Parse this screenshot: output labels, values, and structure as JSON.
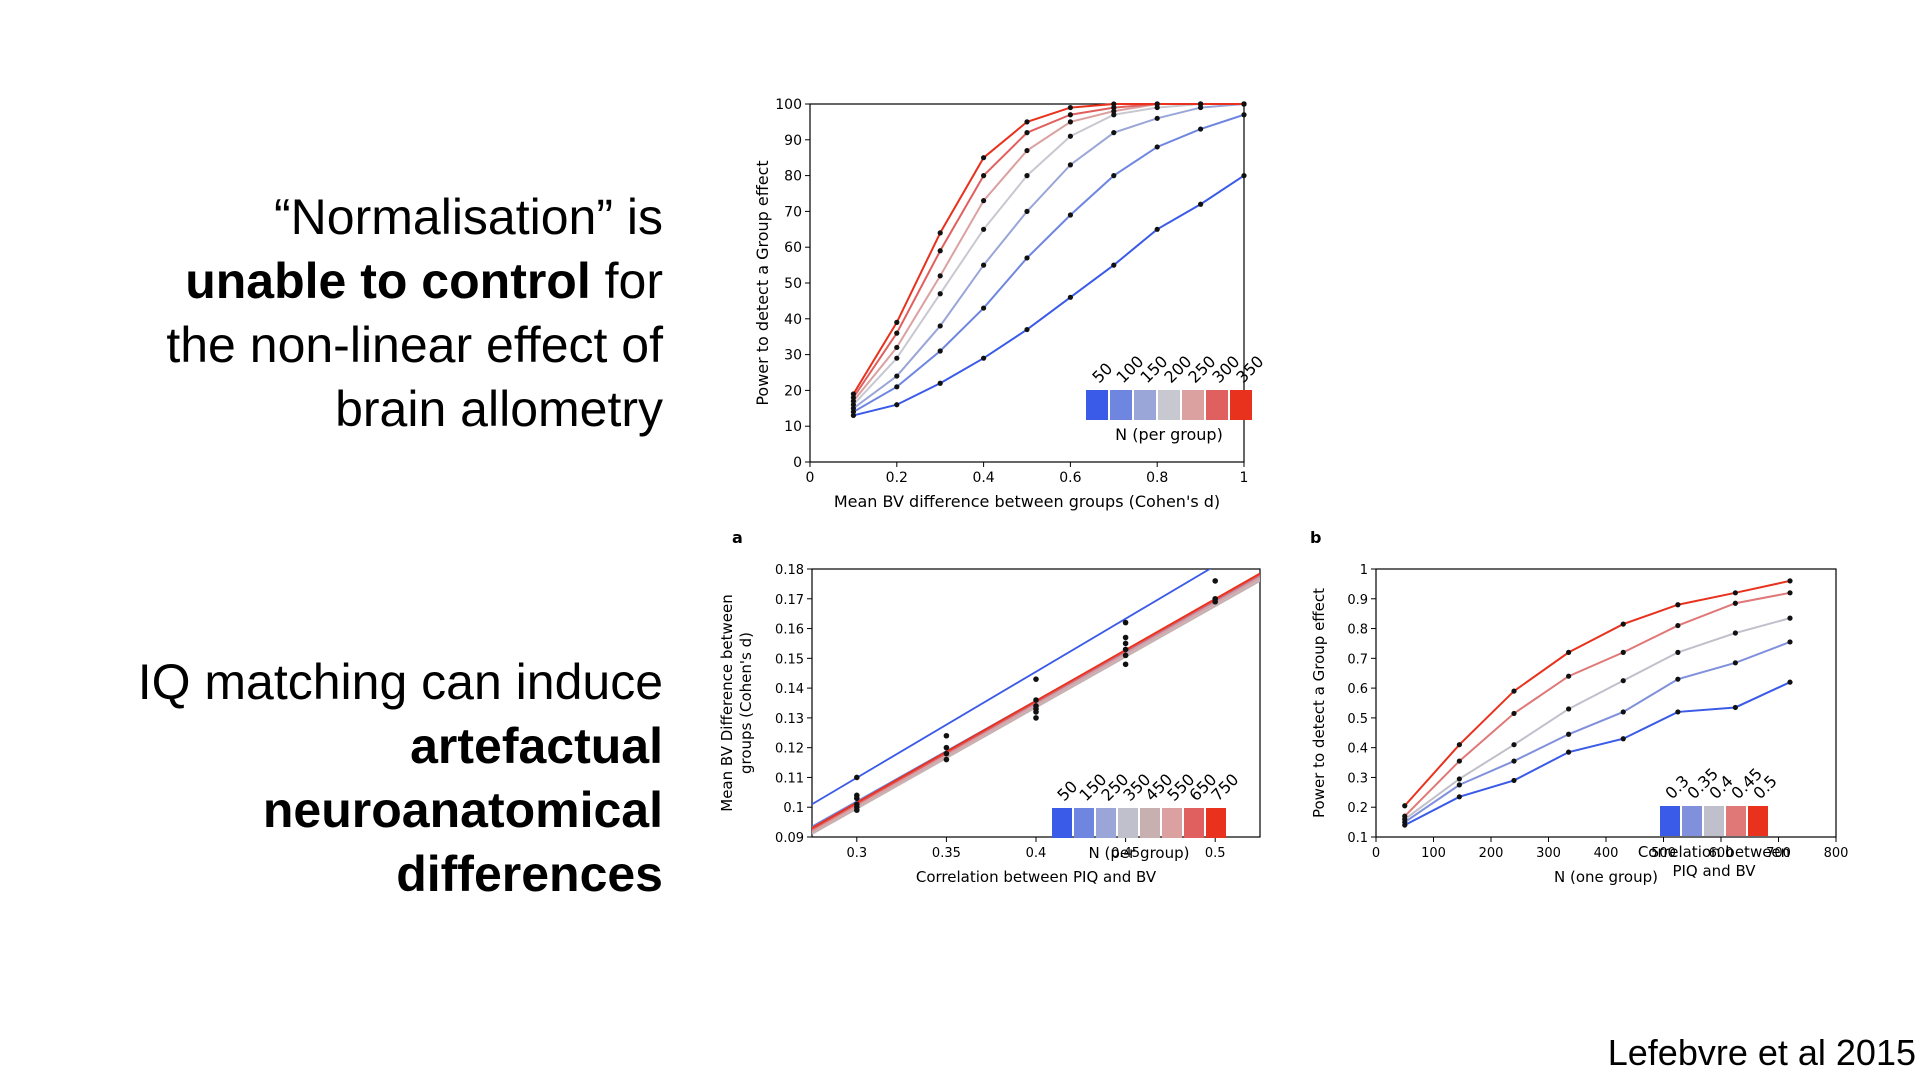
{
  "slide": {
    "text_top": {
      "line1": "“Normalisation” is",
      "line2_bold": "unable to control",
      "line2_rest": " for",
      "line3": "the non-linear effect of",
      "line4": "brain allometry"
    },
    "text_bottom": {
      "line1": "IQ matching can induce",
      "line2_bold": "artefactual",
      "line3_bold": "neuroanatomical",
      "line4_bold": "differences"
    },
    "citation": "Lefebvre et al 2015"
  },
  "chart_data": [
    {
      "type": "line",
      "xlabel": "Mean BV difference between groups (Cohen's d)",
      "ylabel": "Power to detect a Group effect",
      "xlim": [
        0,
        1
      ],
      "ylim": [
        0,
        100
      ],
      "xticks": [
        "0",
        "0.2",
        "0.4",
        "0.6",
        "0.8",
        "1"
      ],
      "yticks": [
        "0",
        "10",
        "20",
        "30",
        "40",
        "50",
        "60",
        "70",
        "80",
        "90",
        "100"
      ],
      "legend_title": "N (per group)",
      "legend_placement": "bottom-right",
      "x": [
        0.1,
        0.2,
        0.3,
        0.4,
        0.5,
        0.6,
        0.7,
        0.8,
        0.9,
        1.0
      ],
      "series": [
        {
          "name": "50",
          "color": "#3a5ae8",
          "values": [
            13,
            16,
            22,
            29,
            37,
            46,
            55,
            65,
            72,
            80
          ]
        },
        {
          "name": "100",
          "color": "#6f86e0",
          "values": [
            14,
            21,
            31,
            43,
            57,
            69,
            80,
            88,
            93,
            97
          ]
        },
        {
          "name": "150",
          "color": "#9aa6d8",
          "values": [
            15,
            24,
            38,
            55,
            70,
            83,
            92,
            96,
            99,
            100
          ]
        },
        {
          "name": "200",
          "color": "#c8c8d0",
          "values": [
            16,
            29,
            47,
            65,
            80,
            91,
            97,
            99,
            100,
            100
          ]
        },
        {
          "name": "250",
          "color": "#dba0a0",
          "values": [
            17,
            32,
            52,
            73,
            87,
            95,
            98,
            100,
            100,
            100
          ]
        },
        {
          "name": "300",
          "color": "#e06060",
          "values": [
            18,
            36,
            59,
            80,
            92,
            97,
            99,
            100,
            100,
            100
          ]
        },
        {
          "name": "350",
          "color": "#e8321e",
          "values": [
            19,
            39,
            64,
            85,
            95,
            99,
            100,
            100,
            100,
            100
          ]
        }
      ]
    },
    {
      "type": "scatter",
      "panel_label": "a",
      "xlabel": "Correlation between PIQ and BV",
      "ylabel_line1": "Mean BV Difference between",
      "ylabel_line2": "groups (Cohen's d)",
      "xlim": [
        0.275,
        0.525
      ],
      "ylim": [
        0.09,
        0.18
      ],
      "xticks": [
        "0.3",
        "0.35",
        "0.4",
        "0.45",
        "0.5"
      ],
      "yticks": [
        "0.09",
        "0.1",
        "0.11",
        "0.12",
        "0.13",
        "0.14",
        "0.15",
        "0.16",
        "0.17",
        "0.18"
      ],
      "legend_title": "N (per group)",
      "legend_placement": "bottom-right",
      "points": {
        "x": [
          0.3,
          0.3,
          0.3,
          0.3,
          0.3,
          0.3,
          0.35,
          0.35,
          0.35,
          0.35,
          0.4,
          0.4,
          0.4,
          0.4,
          0.4,
          0.4,
          0.45,
          0.45,
          0.45,
          0.45,
          0.45,
          0.45,
          0.5,
          0.5,
          0.5
        ],
        "y": [
          0.11,
          0.104,
          0.103,
          0.101,
          0.1,
          0.099,
          0.124,
          0.12,
          0.118,
          0.116,
          0.143,
          0.136,
          0.134,
          0.133,
          0.132,
          0.13,
          0.162,
          0.157,
          0.155,
          0.153,
          0.151,
          0.148,
          0.176,
          0.17,
          0.169
        ]
      },
      "series": [
        {
          "name": "50",
          "color": "#3a5ae8",
          "line": [
            [
              0.275,
              0.101
            ],
            [
              0.525,
              0.19
            ]
          ]
        },
        {
          "name": "150",
          "color": "#6f86e0",
          "line": [
            [
              0.275,
              0.0935
            ],
            [
              0.525,
              0.178
            ]
          ]
        },
        {
          "name": "250",
          "color": "#9aa6d8",
          "line": [
            [
              0.275,
              0.0925
            ],
            [
              0.525,
              0.1775
            ]
          ]
        },
        {
          "name": "350",
          "color": "#c0c0cc",
          "line": [
            [
              0.275,
              0.0915
            ],
            [
              0.525,
              0.1765
            ]
          ]
        },
        {
          "name": "450",
          "color": "#c8b0b0",
          "line": [
            [
              0.275,
              0.091
            ],
            [
              0.525,
              0.176
            ]
          ]
        },
        {
          "name": "550",
          "color": "#dba0a0",
          "line": [
            [
              0.275,
              0.0918
            ],
            [
              0.525,
              0.177
            ]
          ]
        },
        {
          "name": "650",
          "color": "#e06060",
          "line": [
            [
              0.275,
              0.0925
            ],
            [
              0.525,
              0.178
            ]
          ]
        },
        {
          "name": "750",
          "color": "#e8321e",
          "line": [
            [
              0.275,
              0.093
            ],
            [
              0.525,
              0.1785
            ]
          ]
        }
      ]
    },
    {
      "type": "line",
      "panel_label": "b",
      "xlabel": "N (one group)",
      "ylabel": "Power to detect a Group effect",
      "xlim": [
        0,
        800
      ],
      "ylim": [
        0.1,
        1
      ],
      "xticks": [
        "0",
        "100",
        "200",
        "300",
        "400",
        "500",
        "600",
        "700",
        "800"
      ],
      "yticks": [
        "0.1",
        "0.2",
        "0.3",
        "0.4",
        "0.5",
        "0.6",
        "0.7",
        "0.8",
        "0.9",
        "1"
      ],
      "legend_title_line1": "Correlation between",
      "legend_title_line2": "PIQ and BV",
      "legend_placement": "bottom-right",
      "x": [
        50,
        145,
        240,
        335,
        430,
        525,
        625,
        720
      ],
      "series": [
        {
          "name": "0.3",
          "color": "#3a5ae8",
          "values": [
            0.14,
            0.235,
            0.29,
            0.385,
            0.43,
            0.52,
            0.535,
            0.62
          ]
        },
        {
          "name": "0.35",
          "color": "#8090dc",
          "values": [
            0.15,
            0.275,
            0.355,
            0.445,
            0.52,
            0.63,
            0.685,
            0.755
          ]
        },
        {
          "name": "0.4",
          "color": "#c0c0cc",
          "values": [
            0.16,
            0.295,
            0.41,
            0.53,
            0.625,
            0.72,
            0.785,
            0.835
          ]
        },
        {
          "name": "0.45",
          "color": "#e07878",
          "values": [
            0.17,
            0.355,
            0.515,
            0.64,
            0.72,
            0.81,
            0.885,
            0.92
          ]
        },
        {
          "name": "0.5",
          "color": "#e8321e",
          "values": [
            0.205,
            0.41,
            0.59,
            0.72,
            0.815,
            0.88,
            0.92,
            0.96
          ]
        }
      ]
    }
  ]
}
